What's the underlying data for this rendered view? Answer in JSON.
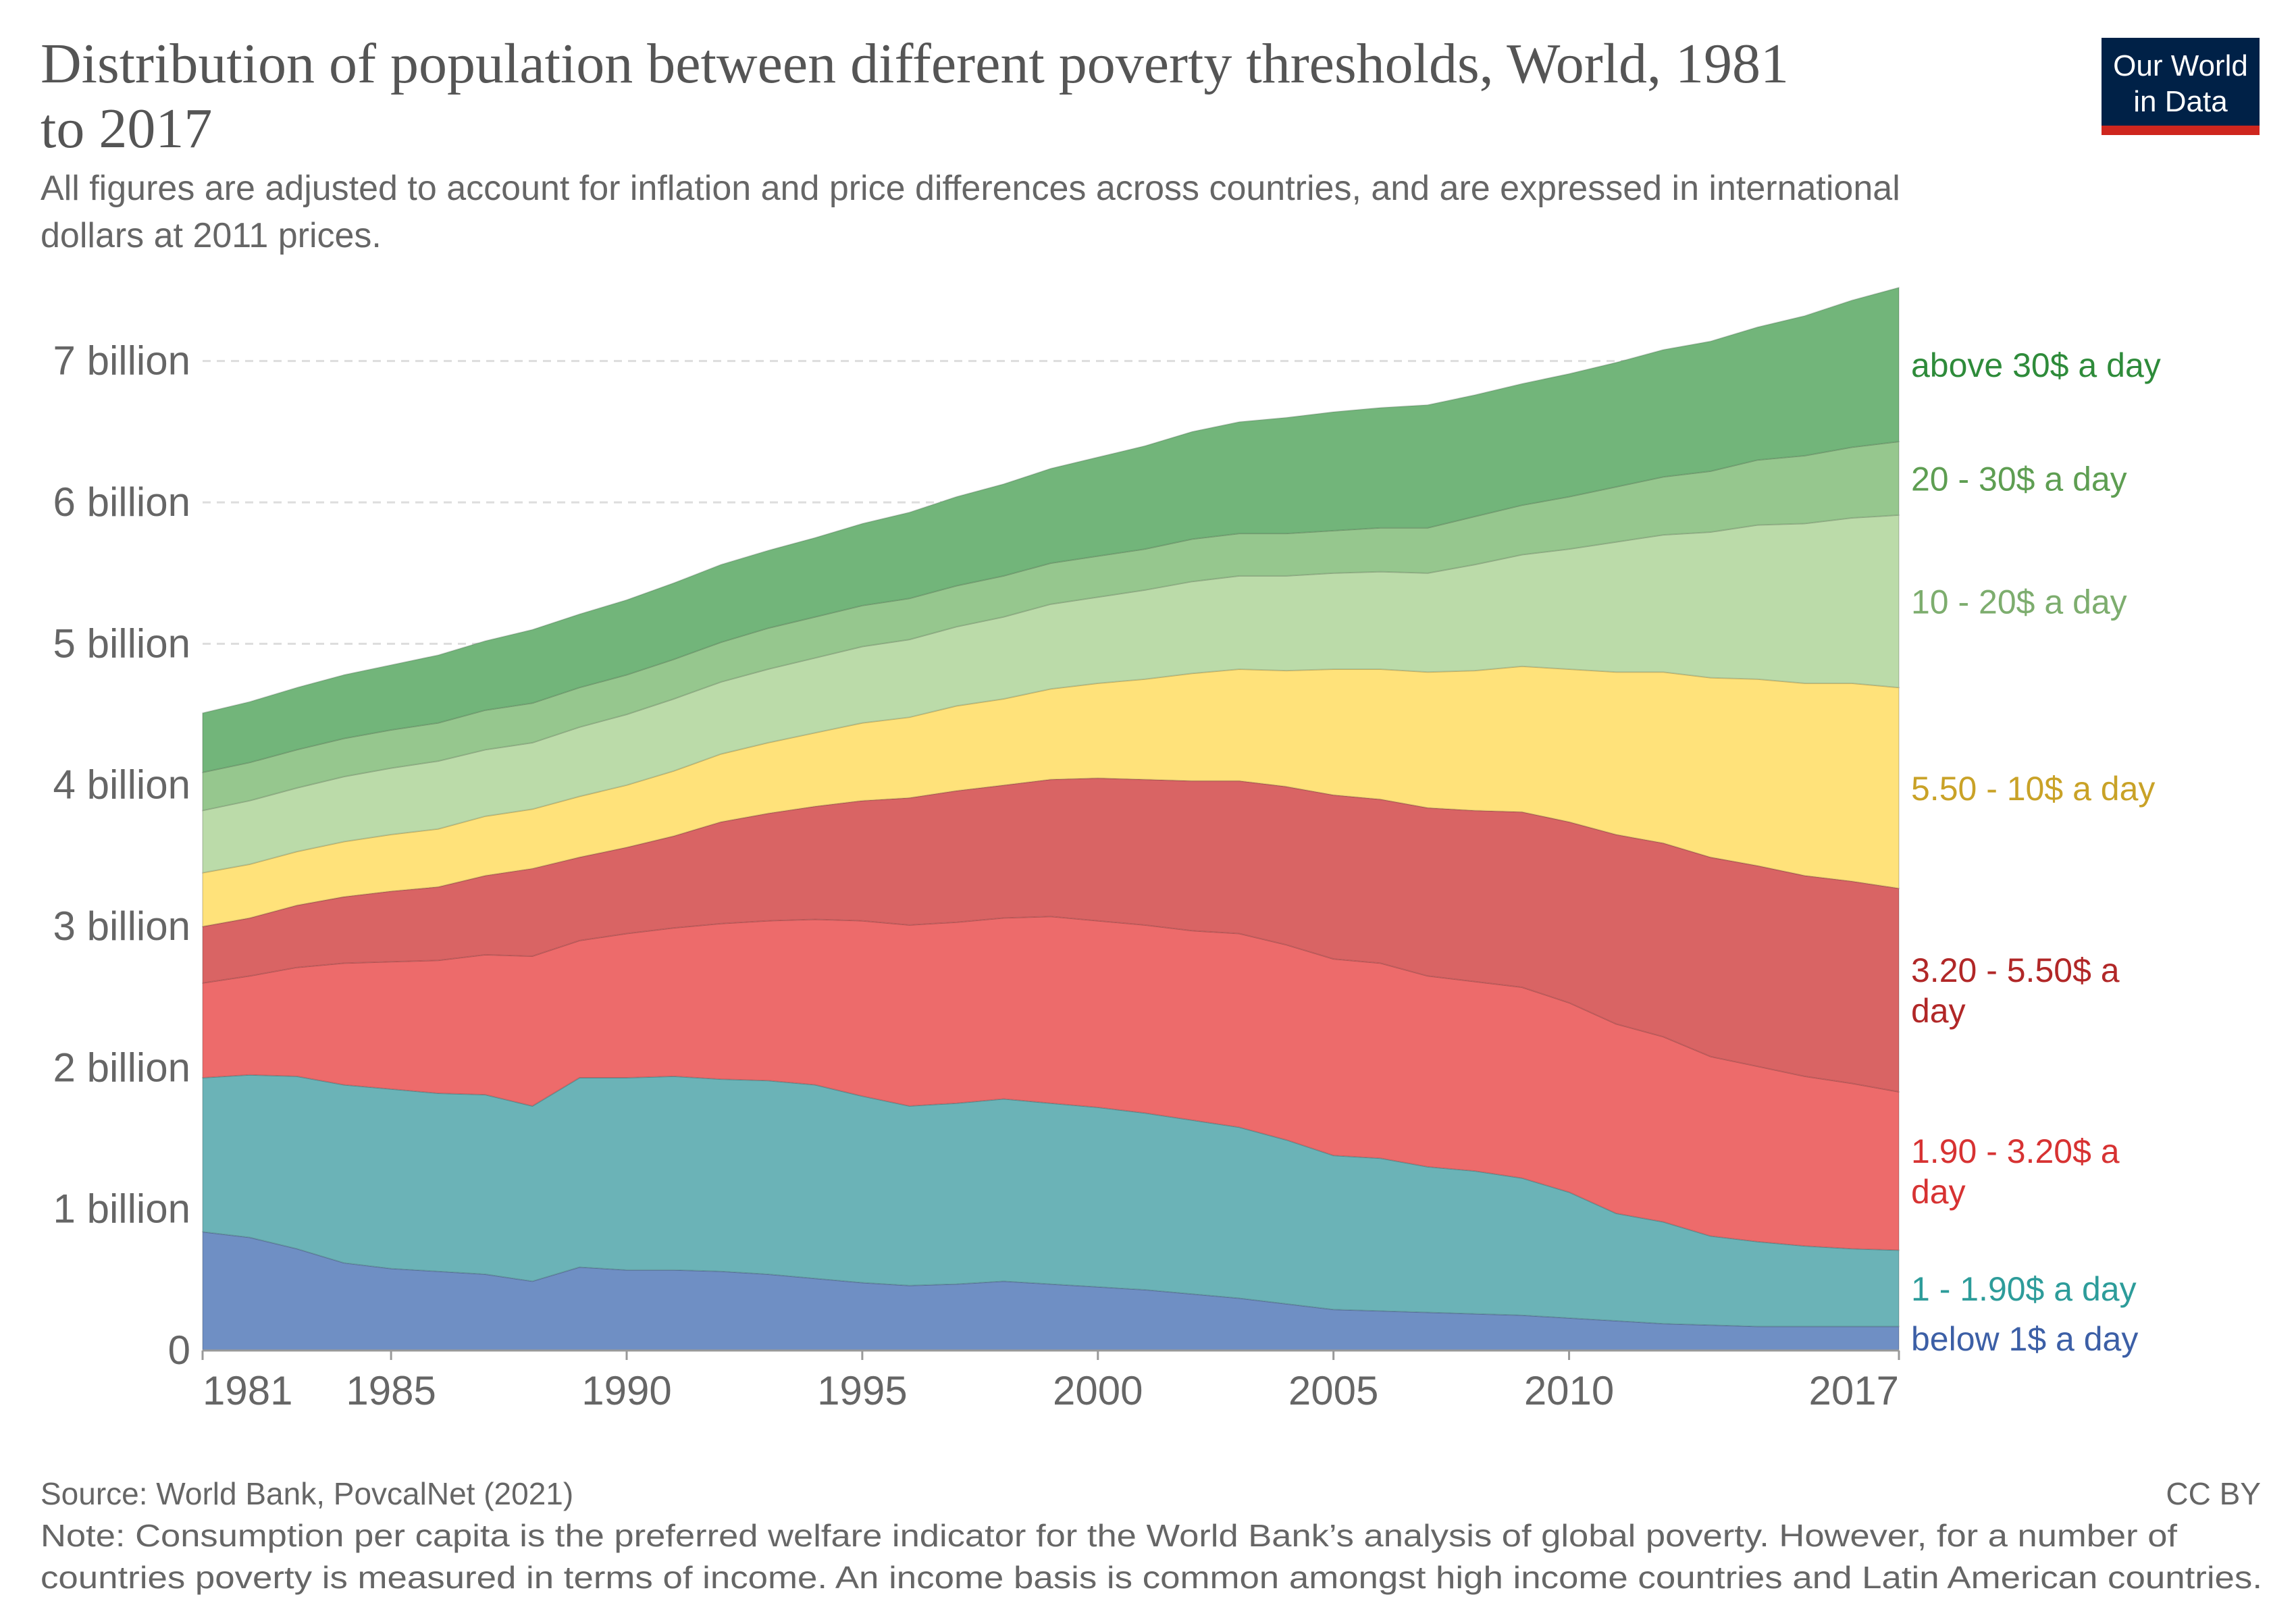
{
  "header": {
    "title_line1": "Distribution of population between different poverty thresholds, World, 1981",
    "title_line2": "to 2017",
    "subtitle_line1": "All figures are adjusted to account for inflation and price differences across countries, and are expressed in international",
    "subtitle_line2": "dollars at 2011 prices."
  },
  "logo": {
    "line1": "Our World",
    "line2": "in Data",
    "bg_color": "#002147",
    "accent_color": "#ce261e"
  },
  "footer": {
    "source": "Source: World Bank, PovcalNet (2021)",
    "license": "CC BY",
    "note_line1": "Note: Consumption per capita is the preferred welfare indicator for the World Bank’s analysis of global poverty. However, for a number of",
    "note_line2": "countries poverty is measured in terms of income. An income basis is common amongst high income countries and Latin American countries."
  },
  "chart_data": {
    "type": "area",
    "stacked": true,
    "x": [
      1981,
      1982,
      1983,
      1984,
      1985,
      1986,
      1987,
      1988,
      1989,
      1990,
      1991,
      1992,
      1993,
      1994,
      1995,
      1996,
      1997,
      1998,
      1999,
      2000,
      2001,
      2002,
      2003,
      2004,
      2005,
      2006,
      2007,
      2008,
      2009,
      2010,
      2011,
      2012,
      2013,
      2014,
      2015,
      2016,
      2017
    ],
    "xlim": [
      1981,
      2017
    ],
    "ylim": [
      0,
      7500000000
    ],
    "x_ticks": [
      {
        "value": 1981,
        "label": "1981"
      },
      {
        "value": 1985,
        "label": "1985"
      },
      {
        "value": 1990,
        "label": "1990"
      },
      {
        "value": 1995,
        "label": "1995"
      },
      {
        "value": 2000,
        "label": "2000"
      },
      {
        "value": 2005,
        "label": "2005"
      },
      {
        "value": 2010,
        "label": "2010"
      },
      {
        "value": 2017,
        "label": "2017"
      }
    ],
    "y_ticks": [
      {
        "value": 0,
        "label": "0"
      },
      {
        "value": 1000000000,
        "label": "1 billion"
      },
      {
        "value": 2000000000,
        "label": "2 billion"
      },
      {
        "value": 3000000000,
        "label": "3 billion"
      },
      {
        "value": 4000000000,
        "label": "4 billion"
      },
      {
        "value": 5000000000,
        "label": "5 billion"
      },
      {
        "value": 6000000000,
        "label": "6 billion"
      },
      {
        "value": 7000000000,
        "label": "7 billion"
      }
    ],
    "grid": true,
    "legend_placement": "right",
    "series": [
      {
        "name": "below 1$ a day",
        "color": "#6f8fc4",
        "label_color": "#3c5fa6",
        "label_lines": [
          "below 1$ a day"
        ],
        "values": [
          840,
          800,
          720,
          620,
          580,
          560,
          540,
          490,
          590,
          570,
          570,
          560,
          540,
          510,
          480,
          460,
          470,
          490,
          470,
          450,
          430,
          400,
          370,
          330,
          290,
          280,
          270,
          260,
          250,
          230,
          210,
          190,
          180,
          170,
          170,
          170,
          170
        ]
      },
      {
        "name": "1 - 1.90$ a day",
        "color": "#6bb3b7",
        "label_color": "#2d9c9a",
        "label_lines": [
          "1 - 1.90$ a day"
        ],
        "values": [
          1090,
          1150,
          1220,
          1260,
          1270,
          1260,
          1270,
          1240,
          1340,
          1360,
          1370,
          1360,
          1370,
          1370,
          1320,
          1270,
          1280,
          1290,
          1280,
          1270,
          1250,
          1230,
          1210,
          1160,
          1090,
          1080,
          1030,
          1010,
          970,
          890,
          760,
          720,
          630,
          600,
          570,
          550,
          540
        ]
      },
      {
        "name": "1.90 - 3.20$ a day",
        "color": "#ed6b6b",
        "label_color": "#d73232",
        "label_lines": [
          "1.90 - 3.20$ a",
          "day"
        ],
        "values": [
          670,
          700,
          770,
          860,
          900,
          940,
          990,
          1060,
          970,
          1020,
          1050,
          1100,
          1130,
          1170,
          1240,
          1280,
          1280,
          1280,
          1320,
          1320,
          1330,
          1340,
          1370,
          1380,
          1390,
          1380,
          1350,
          1340,
          1350,
          1340,
          1340,
          1310,
          1270,
          1240,
          1200,
          1170,
          1120
        ]
      },
      {
        "name": "3.20 - 5.50$ a day",
        "color": "#d96464",
        "label_color": "#b12727",
        "label_lines": [
          "3.20 - 5.50$ a",
          "day"
        ],
        "values": [
          400,
          410,
          440,
          470,
          500,
          520,
          560,
          620,
          590,
          610,
          650,
          720,
          760,
          800,
          850,
          900,
          930,
          940,
          970,
          1010,
          1030,
          1060,
          1080,
          1120,
          1160,
          1160,
          1190,
          1210,
          1240,
          1280,
          1340,
          1370,
          1410,
          1420,
          1420,
          1430,
          1440
        ]
      },
      {
        "name": "5.50 - 10$ a day",
        "color": "#ffe27a",
        "label_color": "#c9a227",
        "label_lines": [
          "5.50 - 10$ a day"
        ],
        "values": [
          380,
          380,
          380,
          390,
          400,
          410,
          420,
          420,
          430,
          440,
          460,
          480,
          500,
          520,
          550,
          570,
          600,
          610,
          640,
          670,
          710,
          760,
          790,
          820,
          890,
          920,
          960,
          990,
          1030,
          1080,
          1150,
          1210,
          1270,
          1320,
          1360,
          1400,
          1420
        ]
      },
      {
        "name": "10 - 20$ a day",
        "color": "#bbdba9",
        "label_color": "#7dad6e",
        "label_lines": [
          "10 - 20$ a day"
        ],
        "values": [
          440,
          450,
          450,
          460,
          470,
          480,
          470,
          470,
          490,
          500,
          510,
          510,
          520,
          530,
          540,
          550,
          560,
          580,
          600,
          610,
          630,
          650,
          660,
          670,
          680,
          690,
          700,
          750,
          790,
          850,
          920,
          970,
          1030,
          1090,
          1130,
          1170,
          1220
        ]
      },
      {
        "name": "20 - 30$ a day",
        "color": "#96c78e",
        "label_color": "#5e9e52",
        "label_lines": [
          "20 - 30$ a day"
        ],
        "values": [
          270,
          270,
          270,
          270,
          270,
          270,
          280,
          280,
          280,
          280,
          280,
          280,
          290,
          290,
          290,
          290,
          290,
          290,
          290,
          290,
          290,
          300,
          300,
          300,
          300,
          310,
          320,
          340,
          350,
          370,
          390,
          410,
          430,
          460,
          480,
          500,
          520
        ]
      },
      {
        "name": "above 30$ a day",
        "color": "#72b57a",
        "label_color": "#2e8b3a",
        "label_lines": [
          "above 30$ a day"
        ],
        "values": [
          420,
          430,
          440,
          450,
          460,
          480,
          490,
          520,
          520,
          530,
          540,
          550,
          550,
          560,
          580,
          610,
          630,
          650,
          670,
          700,
          730,
          760,
          790,
          820,
          840,
          850,
          870,
          860,
          860,
          870,
          880,
          900,
          920,
          940,
          990,
          1040,
          1090
        ]
      }
    ],
    "value_multiplier": 1000000
  }
}
